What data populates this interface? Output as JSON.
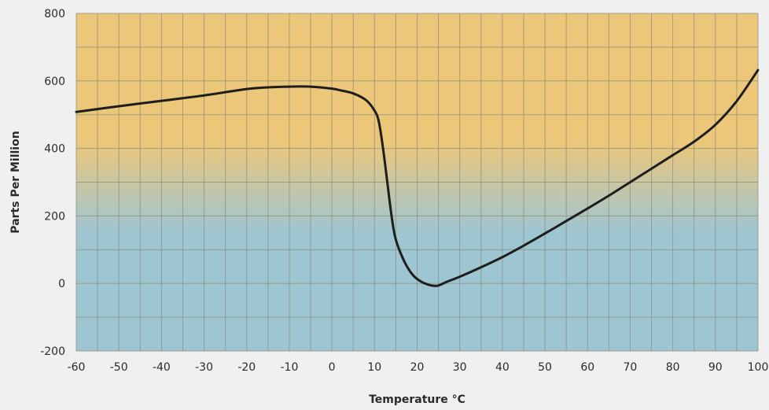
{
  "chart_data": {
    "type": "line",
    "title": "",
    "xlabel": "Temperature °C",
    "ylabel": "Parts Per Million",
    "xlim": [
      -60,
      100
    ],
    "ylim": [
      -200,
      800
    ],
    "x_ticks": [
      "-60",
      "-50",
      "-40",
      "-30",
      "-20",
      "-10",
      "0",
      "10",
      "20",
      "30",
      "40",
      "50",
      "60",
      "70",
      "80",
      "90",
      "100"
    ],
    "y_ticks": [
      "-200",
      "0",
      "200",
      "400",
      "600",
      "800"
    ],
    "grid": true,
    "legend": "none",
    "colors": {
      "background_top": "#ecc779",
      "background_bottom": "#9ec5d2",
      "grid": "#8e8e7c",
      "line": "#1e1e1e",
      "page": "#f0f0f0"
    },
    "series": [
      {
        "x": [
          -60,
          -50,
          -40,
          -30,
          -20,
          -15,
          -10,
          -5,
          0,
          2,
          5,
          8,
          10,
          11,
          12,
          13,
          14,
          15,
          17,
          19,
          21,
          23,
          24,
          25,
          27,
          30,
          35,
          40,
          45,
          50,
          55,
          60,
          65,
          70,
          75,
          80,
          85,
          90,
          95,
          100
        ],
        "y": [
          508,
          525,
          541,
          557,
          576,
          581,
          583,
          583,
          577,
          572,
          563,
          543,
          512,
          480,
          400,
          300,
          200,
          130,
          65,
          25,
          5,
          -5,
          -7,
          -6,
          5,
          20,
          48,
          78,
          112,
          148,
          185,
          222,
          260,
          300,
          340,
          380,
          420,
          470,
          540,
          632
        ]
      }
    ]
  }
}
